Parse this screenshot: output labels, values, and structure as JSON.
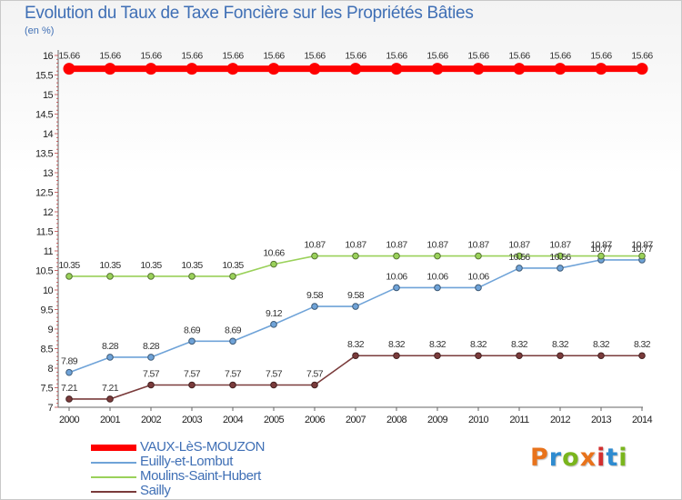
{
  "header": {
    "title": "Evolution du Taux de Taxe Foncière sur les Propriétés Bâties",
    "unit": "(en %)"
  },
  "logo": {
    "text": "Proxiti",
    "colors": [
      "#e8731c",
      "#2e8bd0",
      "#7ab51d",
      "#e8731c",
      "#d22f2f",
      "#2e8bd0",
      "#7ab51d"
    ]
  },
  "chart_data": {
    "type": "line",
    "title": "Evolution du Taux de Taxe Foncière sur les Propriétés Bâties",
    "ylabel": "(en %)",
    "xlabel": "",
    "ylim": [
      7,
      16
    ],
    "ytick_step": 0.5,
    "grid": false,
    "legend_position": "bottom-left",
    "categories": [
      "2000",
      "2001",
      "2002",
      "2003",
      "2004",
      "2005",
      "2006",
      "2007",
      "2008",
      "2009",
      "2010",
      "2011",
      "2012",
      "2013",
      "2014"
    ],
    "ytick_labels": [
      "7",
      "7.5",
      "8",
      "8.5",
      "9",
      "9.5",
      "10",
      "10.5",
      "11",
      "11.5",
      "12",
      "12.5",
      "13",
      "13.5",
      "14",
      "14.5",
      "15",
      "15.5",
      "16"
    ],
    "series": [
      {
        "name": "VAUX-LèS-MOUZON",
        "color": "#ff0000",
        "values": [
          15.66,
          15.66,
          15.66,
          15.66,
          15.66,
          15.66,
          15.66,
          15.66,
          15.66,
          15.66,
          15.66,
          15.66,
          15.66,
          15.66,
          15.66
        ],
        "labels": [
          "15.66",
          "15.66",
          "15.66",
          "15.66",
          "15.66",
          "15.66",
          "15.66",
          "15.66",
          "15.66",
          "15.66",
          "15.66",
          "15.66",
          "15.66",
          "15.66",
          "15.66"
        ]
      },
      {
        "name": "Euilly-et-Lombut",
        "color": "#6fa3d8",
        "values": [
          7.89,
          8.28,
          8.28,
          8.69,
          8.69,
          9.12,
          9.58,
          9.58,
          10.06,
          10.06,
          10.06,
          10.56,
          10.56,
          10.77,
          10.77
        ],
        "labels": [
          "7.89",
          "8.28",
          "8.28",
          "8.69",
          "8.69",
          "9.12",
          "9.58",
          "9.58",
          "10.06",
          "10.06",
          "10.06",
          "10.56",
          "10.56",
          "10.77",
          "10.77"
        ]
      },
      {
        "name": "Moulins-Saint-Hubert",
        "color": "#9ad15a",
        "values": [
          10.35,
          10.35,
          10.35,
          10.35,
          10.35,
          10.66,
          10.87,
          10.87,
          10.87,
          10.87,
          10.87,
          10.87,
          10.87,
          10.87,
          10.87
        ],
        "labels": [
          "10.35",
          "10.35",
          "10.35",
          "10.35",
          "10.35",
          "10.66",
          "10.87",
          "10.87",
          "10.87",
          "10.87",
          "10.87",
          "10.87",
          "10.87",
          "10.87",
          "10.87"
        ]
      },
      {
        "name": "Sailly",
        "color": "#7a3b3b",
        "values": [
          7.21,
          7.21,
          7.57,
          7.57,
          7.57,
          7.57,
          7.57,
          8.32,
          8.32,
          8.32,
          8.32,
          8.32,
          8.32,
          8.32,
          8.32
        ],
        "labels": [
          "7.21",
          "7.21",
          "7.57",
          "7.57",
          "7.57",
          "7.57",
          "7.57",
          "8.32",
          "8.32",
          "8.32",
          "8.32",
          "8.32",
          "8.32",
          "8.32",
          "8.32"
        ]
      }
    ]
  }
}
